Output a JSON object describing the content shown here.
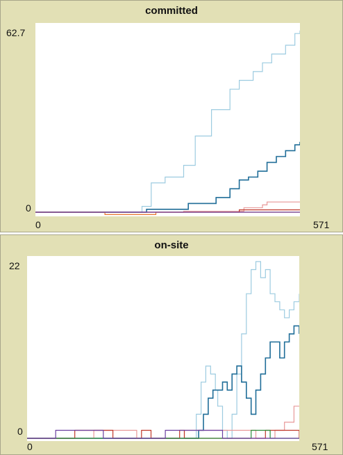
{
  "chart_data": [
    {
      "type": "line",
      "title": "committed",
      "xlim": [
        0,
        571
      ],
      "ylim": [
        0,
        62.7
      ],
      "tick_labels": {
        "x_min": "0",
        "x_max": "571",
        "y_min": "0",
        "y_max": "62.7"
      },
      "colors": [
        "#9ccbe0",
        "#1f6d98",
        "#e89898",
        "#c0392b",
        "#e8762c",
        "#6b3fa0"
      ],
      "series": [
        {
          "x": [
            0,
            200,
            230,
            250,
            280,
            320,
            345,
            380,
            420,
            440,
            470,
            490,
            510,
            540,
            560,
            571
          ],
          "y": [
            0,
            0,
            2,
            10,
            12,
            16,
            26,
            35,
            42,
            45,
            48,
            51,
            54,
            57,
            61,
            62
          ]
        },
        {
          "x": [
            0,
            230,
            240,
            330,
            360,
            390,
            420,
            440,
            460,
            480,
            500,
            520,
            540,
            560,
            571
          ],
          "y": [
            0,
            0,
            1,
            3,
            3,
            5,
            8,
            11,
            12,
            14,
            17,
            19,
            21,
            23,
            24
          ]
        },
        {
          "x": [
            0,
            300,
            320,
            440,
            450,
            490,
            500,
            571
          ],
          "y": [
            0,
            0,
            0.3,
            0.3,
            1.5,
            2.5,
            3.5,
            3.5
          ]
        },
        {
          "x": [
            0,
            420,
            440,
            571
          ],
          "y": [
            0,
            0,
            0.8,
            0.8
          ]
        },
        {
          "x": [
            0,
            140,
            150,
            250,
            260,
            571
          ],
          "y": [
            0,
            0,
            -0.8,
            -0.8,
            0,
            0
          ]
        },
        {
          "x": [
            0,
            571
          ],
          "y": [
            0,
            0
          ]
        }
      ]
    },
    {
      "type": "line",
      "title": "on-site",
      "xlim": [
        0,
        571
      ],
      "ylim": [
        0,
        22
      ],
      "tick_labels": {
        "x_min": "0",
        "x_max": "571",
        "y_min": "0",
        "y_max": "22"
      },
      "colors": [
        "#9ccbe0",
        "#1f6d98",
        "#e89898",
        "#c0392b",
        "#2e8b3a",
        "#6b3fa0"
      ],
      "series": [
        {
          "x": [
            0,
            330,
            345,
            355,
            365,
            375,
            385,
            395,
            400,
            410,
            420,
            430,
            440,
            450,
            460,
            470,
            480,
            490,
            500,
            510,
            520,
            530,
            540,
            550,
            560,
            571
          ],
          "y": [
            0,
            0,
            0,
            3,
            7,
            9,
            8,
            6,
            4,
            1,
            0,
            3,
            8,
            13,
            18,
            21,
            22,
            20,
            21,
            18,
            17,
            16,
            15,
            16,
            17,
            18
          ]
        },
        {
          "x": [
            0,
            350,
            360,
            370,
            380,
            390,
            400,
            410,
            420,
            430,
            440,
            450,
            460,
            470,
            480,
            490,
            500,
            510,
            520,
            530,
            540,
            550,
            560,
            571
          ],
          "y": [
            0,
            0,
            1,
            3,
            5,
            6,
            6,
            7,
            6,
            8,
            9,
            7,
            5,
            3,
            6,
            8,
            10,
            12,
            12,
            10,
            12,
            13,
            14,
            13
          ]
        },
        {
          "x": [
            0,
            120,
            140,
            200,
            230,
            290,
            330,
            450,
            480,
            520,
            540,
            560,
            571
          ],
          "y": [
            0,
            0,
            1,
            1,
            0,
            0,
            1,
            1,
            0,
            1,
            2,
            4,
            4
          ]
        },
        {
          "x": [
            0,
            80,
            100,
            160,
            180,
            240,
            260,
            320,
            330,
            480,
            500,
            540,
            571
          ],
          "y": [
            0,
            0,
            1,
            1,
            0,
            1,
            0,
            1,
            0,
            0,
            1,
            1,
            0
          ]
        },
        {
          "x": [
            0,
            460,
            470,
            500,
            510,
            571
          ],
          "y": [
            0,
            0,
            1,
            1,
            0,
            0
          ]
        },
        {
          "x": [
            0,
            40,
            60,
            150,
            160,
            280,
            290,
            400,
            410,
            571
          ],
          "y": [
            0,
            0,
            1,
            1,
            0,
            0,
            1,
            1,
            0,
            0
          ]
        }
      ]
    }
  ]
}
